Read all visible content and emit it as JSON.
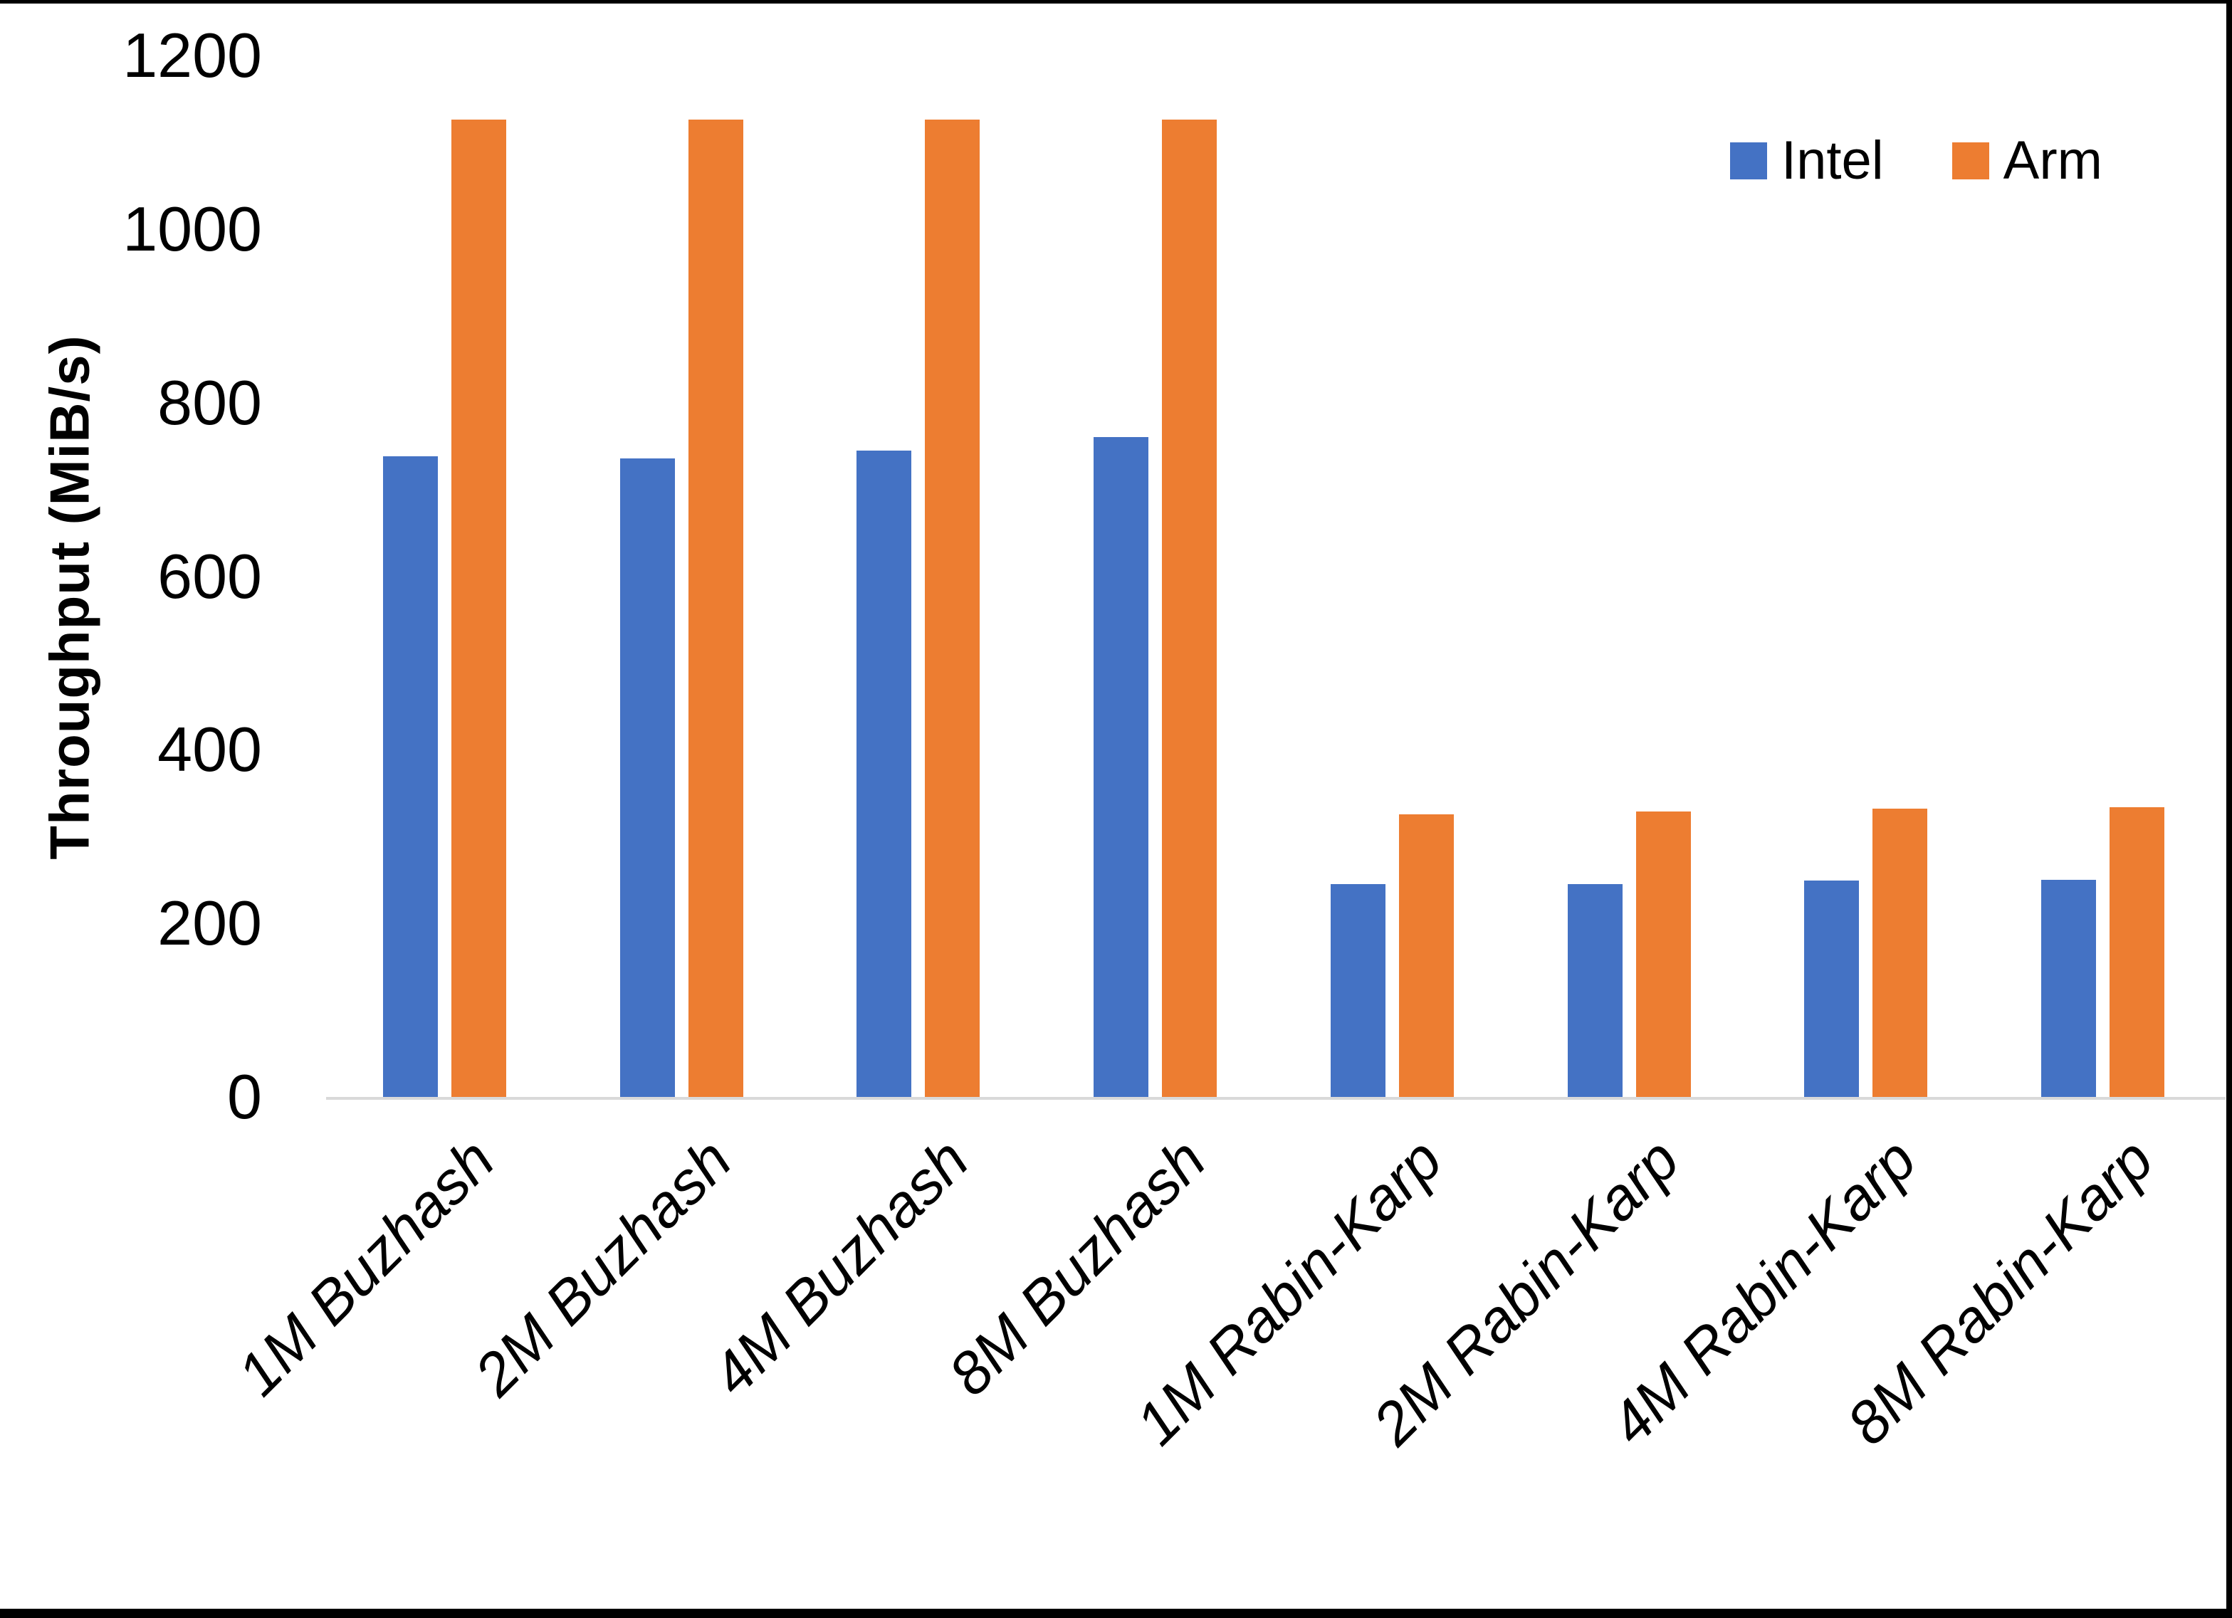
{
  "chart_data": {
    "type": "bar",
    "title": "",
    "xlabel": "",
    "ylabel": "Throughput (MiB/s)",
    "ylim": [
      0,
      1200
    ],
    "yticks": [
      0,
      200,
      400,
      600,
      800,
      1000,
      1200
    ],
    "grid": false,
    "legend_position": "top-right",
    "categories": [
      "1M Buzhash",
      "2M Buzhash",
      "4M Buzhash",
      "8M Buzhash",
      "1M Rabin-Karp",
      "2M Rabin-Karp",
      "4M Rabin-Karp",
      "8M Rabin-Karp"
    ],
    "series": [
      {
        "name": "Intel",
        "color": "#4472C4",
        "values": [
          738,
          736,
          745,
          760,
          245,
          245,
          249,
          250
        ]
      },
      {
        "name": "Arm",
        "color": "#ED7D31",
        "values": [
          1126,
          1126,
          1126,
          1126,
          326,
          329,
          332,
          334
        ]
      }
    ]
  },
  "colors": {
    "background": "#FFFFFF",
    "axis_line": "#D9D9D9",
    "text": "#000000",
    "frame_border": "#000000",
    "intel": "#4472C4",
    "arm": "#ED7D31"
  }
}
